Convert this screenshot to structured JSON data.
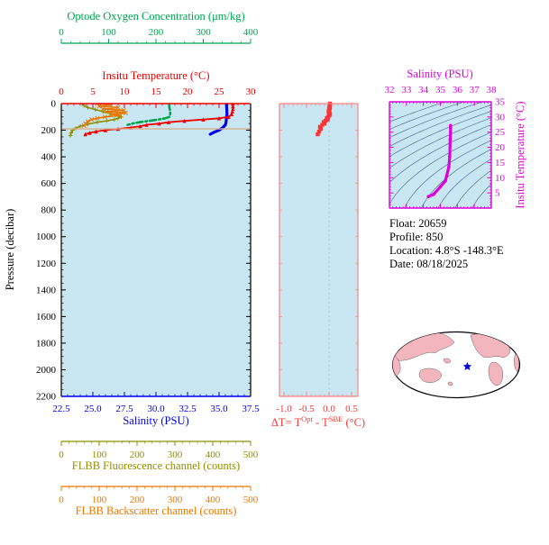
{
  "colors": {
    "plot_bg": "#c8e7f3",
    "oxygen": "#00a550",
    "temperature": "#ee0000",
    "salinity": "#0000ee",
    "fluorescence": "#8f8f00",
    "backscatter": "#e87800",
    "delta_axis": "#ff8080",
    "delta_text": "#ff3333",
    "magenta": "#dd00dd",
    "annotation": "#d8b08c",
    "land": "#f4b6be",
    "star": "#0000dd",
    "contour": "#44608a"
  },
  "main_plot": {
    "ylabel": "Pressure (decibar)",
    "y_range": [
      0,
      2200
    ],
    "y_ticks": [
      0,
      200,
      400,
      600,
      800,
      1000,
      1200,
      1400,
      1600,
      1800,
      2000,
      2200
    ],
    "axes": {
      "oxygen": {
        "label": "Optode Oxygen Concentration (μm/kg)",
        "range": [
          0,
          400
        ],
        "ticks": [
          0,
          100,
          200,
          300,
          400
        ]
      },
      "temperature": {
        "label": "Insitu Temperature (°C)",
        "range": [
          0,
          30
        ],
        "ticks": [
          0,
          5,
          10,
          15,
          20,
          25,
          30
        ]
      },
      "salinity": {
        "label": "Salinity (PSU)",
        "range": [
          22.5,
          37.5
        ],
        "ticks": [
          "22.5",
          "25.0",
          "27.5",
          "30.0",
          "32.5",
          "35.0",
          "37.5"
        ]
      },
      "fluorescence": {
        "label": "FLBB Fluorescence channel (counts)",
        "range": [
          0,
          500
        ],
        "ticks": [
          0,
          100,
          200,
          300,
          400,
          500
        ]
      },
      "backscatter": {
        "label": "FLBB Backscatter channel (counts)",
        "range": [
          0,
          500
        ],
        "ticks": [
          0,
          100,
          200,
          300,
          400,
          500
        ]
      }
    }
  },
  "delta_plot": {
    "label_parts": {
      "p1": "ΔT= T",
      "sup1": "Opt",
      "p2": " - T",
      "sup2": "SBE",
      "p3": " (°C)"
    },
    "x_range": [
      -1.0,
      0.5
    ],
    "x_ticks": [
      "-1.0",
      "-0.5",
      "0.0",
      "0.5"
    ]
  },
  "ts_plot": {
    "x_label": "Salinity (PSU)",
    "y_label": "Insitu Temperature (°C)",
    "x_range": [
      32,
      38
    ],
    "x_ticks": [
      32,
      33,
      34,
      35,
      36,
      37,
      38
    ],
    "y_range": [
      0,
      35
    ],
    "y_ticks": [
      5,
      10,
      15,
      20,
      25,
      30,
      35
    ]
  },
  "info": {
    "float": "Float:  20659",
    "profile": "Profile:  850",
    "location": "Location:  4.8°S -148.3°E",
    "date": "Date:  08/18/2025"
  },
  "map": {
    "star_lat": -4.8,
    "star_lon": -148.3
  },
  "chart_data": [
    {
      "type": "line",
      "title": "Float profile vs pressure",
      "ylabel": "Pressure (decibar)",
      "y_range": [
        0,
        2200
      ],
      "annotation_line": {
        "pressure": 190
      },
      "series": [
        {
          "id": "salinity",
          "name": "Salinity (PSU)",
          "axis_range": [
            22.5,
            37.5
          ],
          "color": "#0000ee",
          "width": 3.2,
          "pressure": [
            0,
            20,
            40,
            60,
            80,
            100,
            120,
            140,
            160,
            180,
            200,
            215,
            230
          ],
          "values": [
            35.6,
            35.6,
            35.61,
            35.62,
            35.63,
            35.6,
            35.58,
            35.55,
            35.5,
            35.3,
            35.0,
            34.6,
            34.3
          ]
        },
        {
          "id": "temperature",
          "name": "Insitu Temperature (°C)",
          "axis_range": [
            0,
            30
          ],
          "color": "#ee0000",
          "width": 1.8,
          "marker": "triangle",
          "pressure": [
            0,
            20,
            40,
            60,
            80,
            100,
            110,
            120,
            130,
            140,
            150,
            160,
            170,
            180,
            190,
            200,
            210,
            220,
            230
          ],
          "values": [
            27.2,
            27.2,
            27.2,
            27.1,
            27.0,
            26.5,
            25.0,
            22.5,
            19.5,
            17.0,
            15.5,
            13.5,
            12.5,
            11.0,
            9.0,
            7.0,
            5.5,
            4.5,
            3.8
          ]
        },
        {
          "id": "oxygen",
          "name": "Optode Oxygen Concentration (μm/kg)",
          "axis_range": [
            0,
            400
          ],
          "color": "#00a550",
          "width": 2.6,
          "dash": "7 3 2 3",
          "pressure": [
            0,
            20,
            40,
            60,
            80,
            100,
            110,
            120,
            130,
            140,
            150,
            160
          ],
          "values": [
            228,
            228,
            229,
            230,
            230,
            228,
            220,
            205,
            185,
            165,
            150,
            140
          ]
        },
        {
          "id": "fluorescence",
          "name": "FLBB Fluorescence channel (counts)",
          "axis_range": [
            0,
            500
          ],
          "color": "#8f8f00",
          "width": 1.6,
          "marker": "plus",
          "pressure": [
            0,
            15,
            30,
            45,
            60,
            75,
            90,
            100,
            110,
            120,
            130,
            140,
            155,
            170,
            185,
            200,
            220,
            240
          ],
          "values": [
            55,
            60,
            70,
            90,
            110,
            130,
            150,
            158,
            150,
            140,
            120,
            95,
            70,
            50,
            38,
            30,
            26,
            24
          ]
        },
        {
          "id": "backscatter",
          "name": "FLBB Backscatter channel (counts)",
          "axis_range": [
            0,
            500
          ],
          "color": "#e87800",
          "width": 1.6,
          "marker": "x",
          "pressure": [
            0,
            10,
            20,
            30,
            40,
            50,
            60,
            70,
            80,
            90,
            100,
            110,
            120,
            135,
            150,
            165
          ],
          "values": [
            95,
            130,
            100,
            150,
            110,
            165,
            120,
            170,
            130,
            155,
            115,
            95,
            80,
            70,
            64,
            60
          ]
        }
      ]
    },
    {
      "type": "scatter",
      "xlabel": "ΔT= T^Opt - T^SBE (°C)",
      "x_range": [
        -1.0,
        0.5
      ],
      "color": "#ff3333",
      "pressure": [
        0,
        10,
        20,
        30,
        40,
        50,
        60,
        70,
        80,
        90,
        100,
        110,
        120,
        130,
        140,
        150,
        160,
        175,
        190,
        210,
        230
      ],
      "values": [
        0.02,
        0.02,
        0.01,
        0.02,
        0.0,
        0.01,
        -0.01,
        0.0,
        0.02,
        0.0,
        -0.02,
        -0.05,
        -0.03,
        -0.08,
        -0.12,
        -0.1,
        -0.15,
        -0.2,
        -0.18,
        -0.22,
        -0.25
      ]
    },
    {
      "type": "line",
      "title": "T-S diagram",
      "xlabel": "Salinity (PSU)",
      "ylabel": "Insitu Temperature (°C)",
      "x_range": [
        32,
        38
      ],
      "y_range": [
        0,
        35
      ],
      "color": "#dd00dd",
      "salinity": [
        35.6,
        35.6,
        35.6,
        35.58,
        35.55,
        35.5,
        35.3,
        35.0,
        34.6,
        34.3
      ],
      "temperature": [
        27.2,
        26.5,
        25.0,
        22.5,
        17.0,
        13.5,
        9.0,
        7.0,
        4.5,
        3.8
      ],
      "density_contours": {
        "sigma_min": 20,
        "sigma_max": 30,
        "sigma_step": 0.8
      }
    }
  ]
}
